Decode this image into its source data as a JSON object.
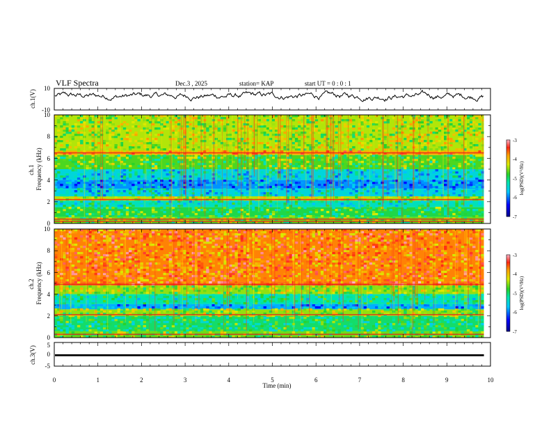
{
  "header": {
    "title": "VLF Spectra",
    "date": "Dec.3 , 2025",
    "station": "station= KAP",
    "start_ut": "start UT = 0 : 0 : 1"
  },
  "chart_data": [
    {
      "type": "line",
      "name": "ch1-waveform",
      "ylabel": "ch.1(V)",
      "ylim": [
        -10,
        10
      ],
      "yticks": [
        "10",
        "-10"
      ],
      "xlim": [
        0,
        10
      ],
      "trend": "noisy waveform oscillating roughly between -2 and 8 V",
      "series": [
        {
          "name": "ch.1",
          "color": "#000000"
        }
      ]
    },
    {
      "type": "heatmap",
      "name": "ch1-spectrogram",
      "ylabel": "ch.1\nFrequency (kHz)",
      "ylim": [
        0,
        10
      ],
      "yticks": [
        "0",
        "2",
        "4",
        "6",
        "8",
        "10"
      ],
      "xlim": [
        0,
        10
      ],
      "data_end_min": 9.85,
      "bands": [
        {
          "from": 0.0,
          "to": 0.6,
          "value": -4.6
        },
        {
          "from": 0.6,
          "to": 1.5,
          "value": -4.9
        },
        {
          "from": 1.5,
          "to": 2.1,
          "value": -5.3
        },
        {
          "from": 2.1,
          "to": 2.5,
          "value": -4.4
        },
        {
          "from": 2.5,
          "to": 3.2,
          "value": -5.5
        },
        {
          "from": 3.2,
          "to": 4.0,
          "value": -5.9
        },
        {
          "from": 4.0,
          "to": 5.0,
          "value": -5.5
        },
        {
          "from": 5.0,
          "to": 6.3,
          "value": -4.7
        },
        {
          "from": 6.3,
          "to": 6.7,
          "value": -3.9
        },
        {
          "from": 6.7,
          "to": 10.0,
          "value": -4.4
        }
      ],
      "lines_khz": [
        0.2,
        0.4,
        2.2,
        6.5
      ],
      "colorbar": {
        "label": "log(PSD)(V²/Hz)",
        "range": [
          -7,
          -3
        ],
        "ticks": [
          "-3",
          "-4",
          "-5",
          "-6",
          "-7"
        ]
      }
    },
    {
      "type": "heatmap",
      "name": "ch2-spectrogram",
      "ylabel": "ch.2\nFrequency (kHz)",
      "ylim": [
        0,
        10
      ],
      "yticks": [
        "0",
        "2",
        "4",
        "6",
        "8",
        "10"
      ],
      "xlim": [
        0,
        10
      ],
      "data_end_min": 9.85,
      "bands": [
        {
          "from": 0.0,
          "to": 0.6,
          "value": -4.6
        },
        {
          "from": 0.6,
          "to": 2.0,
          "value": -5.0
        },
        {
          "from": 2.0,
          "to": 2.6,
          "value": -4.5
        },
        {
          "from": 2.6,
          "to": 3.1,
          "value": -5.8
        },
        {
          "from": 3.1,
          "to": 4.0,
          "value": -5.2
        },
        {
          "from": 4.0,
          "to": 4.8,
          "value": -4.5
        },
        {
          "from": 4.8,
          "to": 5.1,
          "value": -3.6
        },
        {
          "from": 5.1,
          "to": 10.0,
          "value": -3.7
        }
      ],
      "lines_khz": [
        0.3,
        2.1,
        4.9
      ],
      "colorbar": {
        "label": "log(PSD)(V²/Hz)",
        "range": [
          -7,
          -3
        ],
        "ticks": [
          "-3",
          "-4",
          "-5",
          "-6",
          "-7"
        ]
      }
    },
    {
      "type": "line",
      "name": "ch3-waveform",
      "ylabel": "ch.3(V)",
      "ylim": [
        -5,
        5
      ],
      "yticks": [
        "5",
        "0",
        "-5"
      ],
      "xlim": [
        0,
        10
      ],
      "xlabel": "Time (min)",
      "xticks": [
        "0",
        "1",
        "2",
        "3",
        "4",
        "5",
        "6",
        "7",
        "8",
        "9",
        "10"
      ],
      "level": [
        -0.8,
        0.0
      ],
      "series": [
        {
          "name": "ch.3",
          "color": "#000000"
        }
      ]
    }
  ]
}
